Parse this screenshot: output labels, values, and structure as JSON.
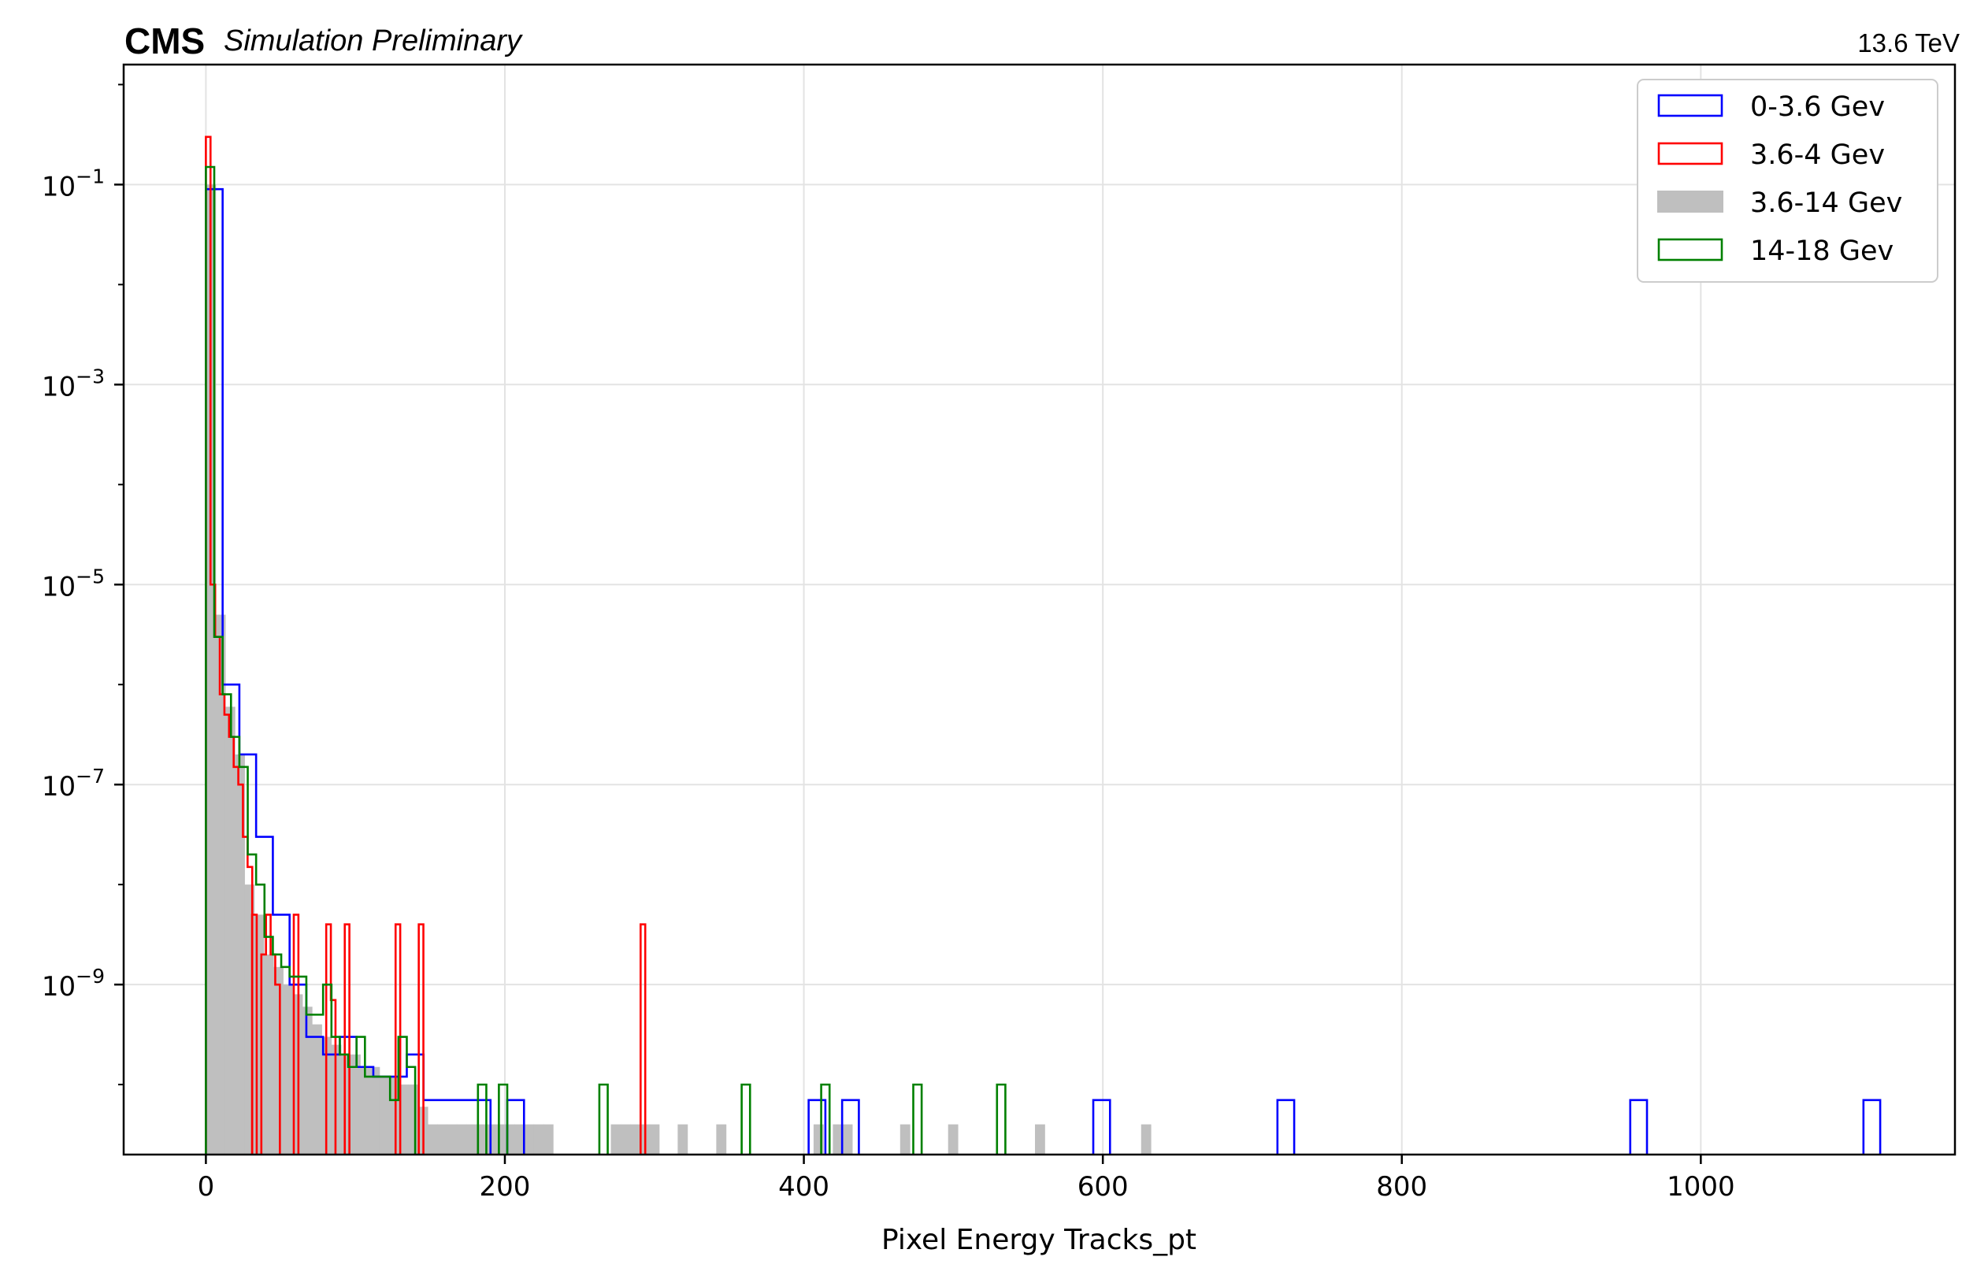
{
  "header": {
    "experiment": "CMS",
    "status": "Simulation Preliminary",
    "energy": "13.6 TeV"
  },
  "colors": {
    "blue": "#0000ff",
    "red": "#ff0000",
    "gray": "#bfbfbf",
    "green": "#008000",
    "grid": "#e3e3e3"
  },
  "chart_data": {
    "type": "histogram",
    "xlabel": "Pixel Energy Tracks_pt",
    "ylabel": "",
    "xlim": [
      -55,
      1170
    ],
    "ylim_log10": [
      -10.7,
      0.2
    ],
    "y_scale": "log",
    "grid": true,
    "legend_position": "top-right",
    "x_ticks": [
      {
        "value": 0,
        "label": "0"
      },
      {
        "value": 200,
        "label": "200"
      },
      {
        "value": 400,
        "label": "400"
      },
      {
        "value": 600,
        "label": "600"
      },
      {
        "value": 800,
        "label": "800"
      },
      {
        "value": 1000,
        "label": "1000"
      }
    ],
    "y_ticks": [
      {
        "exp": -1,
        "base": "10",
        "label": "−1"
      },
      {
        "exp": -3,
        "base": "10",
        "label": "−3"
      },
      {
        "exp": -5,
        "base": "10",
        "label": "−5"
      },
      {
        "exp": -7,
        "base": "10",
        "label": "−7"
      },
      {
        "exp": -9,
        "base": "10",
        "label": "−9"
      }
    ],
    "series": [
      {
        "name": "0-3.6 Gev",
        "style": "step",
        "color": "#0000ff",
        "bin_width": 11.2,
        "bins": [
          [
            0,
            0.09
          ],
          [
            11.2,
            1e-06
          ],
          [
            22.4,
            2e-07
          ],
          [
            33.6,
            3e-08
          ],
          [
            44.8,
            5e-09
          ],
          [
            56,
            1e-09
          ],
          [
            67.2,
            3e-10
          ],
          [
            78.4,
            2e-10
          ],
          [
            89.6,
            3e-10
          ],
          [
            100.8,
            1.5e-10
          ],
          [
            112,
            1.2e-10
          ],
          [
            123.2,
            1.2e-10
          ],
          [
            134.4,
            2e-10
          ],
          [
            145.6,
            7e-11
          ],
          [
            156.8,
            7e-11
          ],
          [
            168,
            7e-11
          ],
          [
            179.2,
            7e-11
          ],
          [
            201.6,
            7e-11
          ],
          [
            403.2,
            7e-11
          ],
          [
            425.6,
            7e-11
          ],
          [
            593.6,
            7e-11
          ],
          [
            716.8,
            7e-11
          ],
          [
            952.8,
            7e-11
          ],
          [
            1108.8,
            7e-11
          ]
        ]
      },
      {
        "name": "3.6-4 Gev",
        "style": "step",
        "color": "#ff0000",
        "bin_width": 3.1,
        "bins": [
          [
            0,
            0.3
          ],
          [
            3.1,
            1e-05
          ],
          [
            6.2,
            3e-06
          ],
          [
            9.3,
            8e-07
          ],
          [
            12.4,
            5e-07
          ],
          [
            15.5,
            3e-07
          ],
          [
            18.6,
            1.5e-07
          ],
          [
            21.7,
            1e-07
          ],
          [
            24.8,
            3e-08
          ],
          [
            27.9,
            1.5e-08
          ],
          [
            30.9,
            5e-09
          ],
          [
            37.1,
            2e-09
          ],
          [
            40.2,
            5e-09
          ],
          [
            43.3,
            2e-09
          ],
          [
            46.4,
            1e-09
          ],
          [
            58.8,
            5e-09
          ],
          [
            80.5,
            4e-09
          ],
          [
            83.6,
            7e-10
          ],
          [
            92.9,
            4e-09
          ],
          [
            126.9,
            4e-09
          ],
          [
            142.4,
            4e-09
          ],
          [
            290.8,
            4e-09
          ]
        ]
      },
      {
        "name": "3.6-14 Gev",
        "style": "filled",
        "color": "#bfbfbf",
        "bin_width": 6.45,
        "bins": [
          [
            0,
            0.1
          ],
          [
            6.45,
            5e-06
          ],
          [
            12.9,
            6e-07
          ],
          [
            19.35,
            2e-07
          ],
          [
            25.8,
            1e-08
          ],
          [
            32.25,
            5e-09
          ],
          [
            38.7,
            2e-09
          ],
          [
            45.15,
            1.5e-09
          ],
          [
            51.6,
            1e-09
          ],
          [
            58.05,
            8e-10
          ],
          [
            64.5,
            6e-10
          ],
          [
            70.95,
            4e-10
          ],
          [
            77.4,
            3e-10
          ],
          [
            83.85,
            2.5e-10
          ],
          [
            90.3,
            2e-10
          ],
          [
            96.75,
            2e-10
          ],
          [
            103.2,
            1.5e-10
          ],
          [
            109.65,
            1.5e-10
          ],
          [
            116.1,
            1.2e-10
          ],
          [
            122.55,
            1.2e-10
          ],
          [
            129,
            1e-10
          ],
          [
            135.45,
            1e-10
          ],
          [
            141.9,
            6e-11
          ],
          [
            148.35,
            4e-11
          ],
          [
            154.8,
            4e-11
          ],
          [
            161.25,
            4e-11
          ],
          [
            167.7,
            4e-11
          ],
          [
            174.15,
            4e-11
          ],
          [
            180.6,
            4e-11
          ],
          [
            187.05,
            4e-11
          ],
          [
            193.5,
            4e-11
          ],
          [
            199.95,
            4e-11
          ],
          [
            206.4,
            4e-11
          ],
          [
            212.85,
            4e-11
          ],
          [
            219.3,
            4e-11
          ],
          [
            225.75,
            4e-11
          ],
          [
            270.9,
            4e-11
          ],
          [
            277.35,
            4e-11
          ],
          [
            283.8,
            4e-11
          ],
          [
            290.25,
            4e-11
          ],
          [
            296.7,
            4e-11
          ],
          [
            315.6,
            4e-11
          ],
          [
            341.4,
            4e-11
          ],
          [
            406.5,
            4e-11
          ],
          [
            419.4,
            4e-11
          ],
          [
            425.85,
            4e-11
          ],
          [
            464.4,
            4e-11
          ],
          [
            496.5,
            4e-11
          ],
          [
            554.6,
            4e-11
          ],
          [
            625.6,
            4e-11
          ]
        ]
      },
      {
        "name": "14-18 Gev",
        "style": "step",
        "color": "#008000",
        "bin_width": 5.6,
        "bins": [
          [
            0,
            0.15
          ],
          [
            5.6,
            3e-06
          ],
          [
            11.2,
            8e-07
          ],
          [
            16.8,
            3e-07
          ],
          [
            22.4,
            1.5e-07
          ],
          [
            28,
            2e-08
          ],
          [
            33.6,
            1e-08
          ],
          [
            39.2,
            3e-09
          ],
          [
            44.8,
            2e-09
          ],
          [
            50.4,
            1.5e-09
          ],
          [
            56,
            1.2e-09
          ],
          [
            61.6,
            1.2e-09
          ],
          [
            67.2,
            5e-10
          ],
          [
            72.8,
            5e-10
          ],
          [
            78.4,
            1e-09
          ],
          [
            84,
            3e-10
          ],
          [
            89.6,
            2e-10
          ],
          [
            95.2,
            1.5e-10
          ],
          [
            100.8,
            3e-10
          ],
          [
            106.4,
            1.2e-10
          ],
          [
            112,
            1.2e-10
          ],
          [
            117.6,
            1.2e-10
          ],
          [
            123.2,
            7e-11
          ],
          [
            128.8,
            3e-10
          ],
          [
            134.4,
            1.5e-10
          ],
          [
            182,
            1e-10
          ],
          [
            196,
            1e-10
          ],
          [
            263.2,
            1e-10
          ],
          [
            358.4,
            1e-10
          ],
          [
            411.6,
            1e-10
          ],
          [
            473.2,
            1e-10
          ],
          [
            529.2,
            1e-10
          ]
        ]
      }
    ]
  }
}
